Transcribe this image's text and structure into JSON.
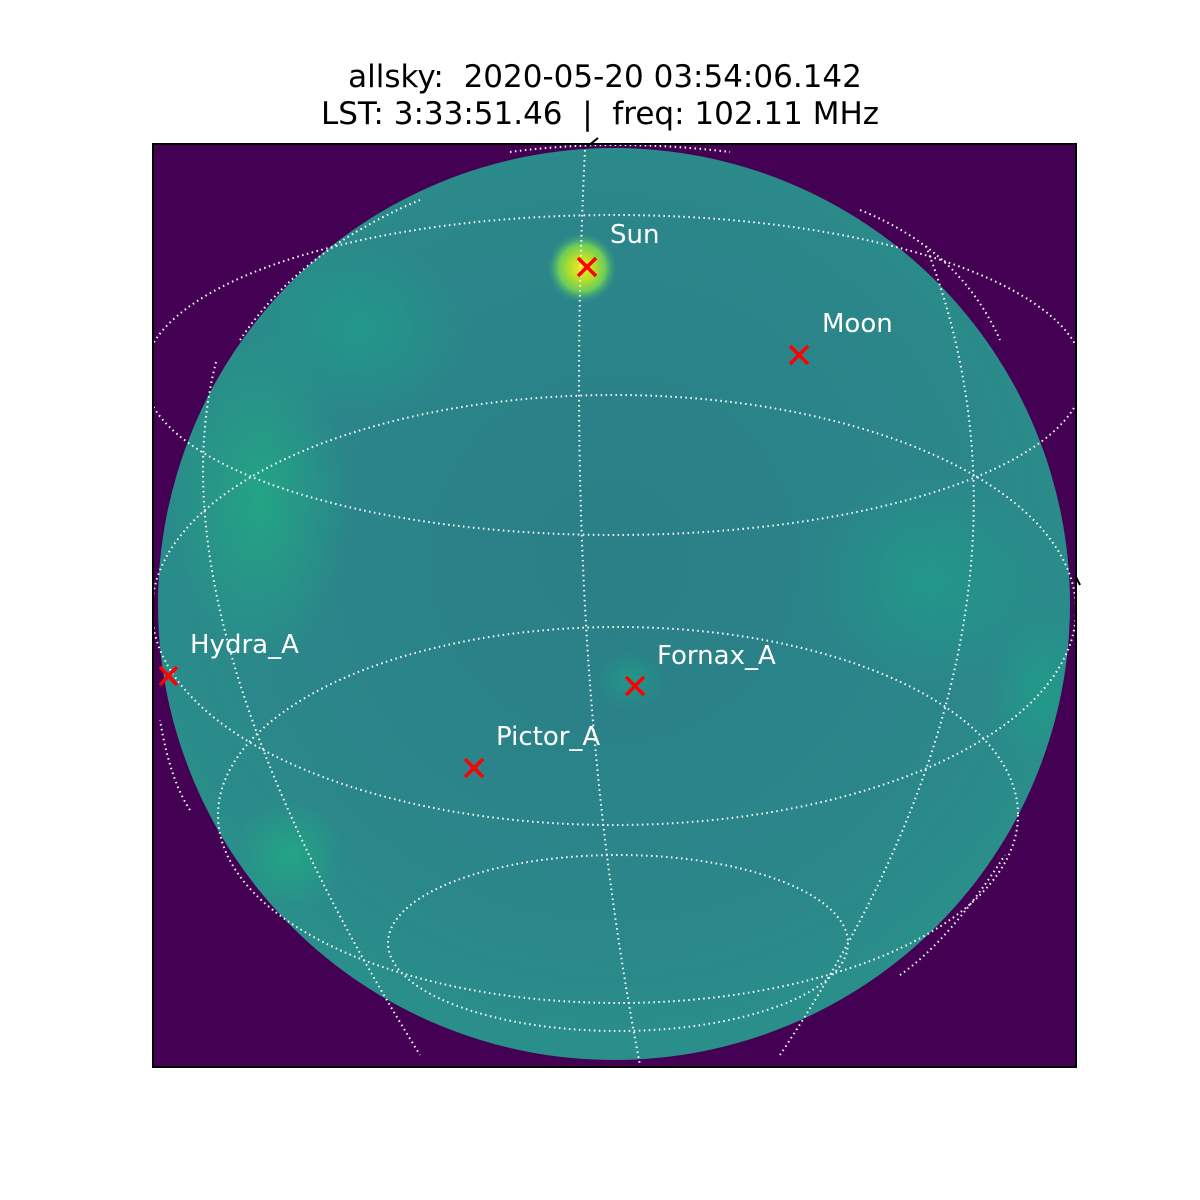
{
  "title": {
    "line1": "allsky:  2020-05-20 03:54:06.142",
    "line2": "LST: 3:33:51.46  |  freq: 102.11 MHz"
  },
  "colors": {
    "background": "#440154",
    "sky_base": "#2a8086",
    "grid": "#ffffff",
    "marker": "#ff0000",
    "label": "#ffffff",
    "frame": "#000000"
  },
  "sources": [
    {
      "name": "Sun"
    },
    {
      "name": "Moon"
    },
    {
      "name": "Hydra_A"
    },
    {
      "name": "Fornax_A"
    },
    {
      "name": "Pictor_A"
    }
  ]
}
